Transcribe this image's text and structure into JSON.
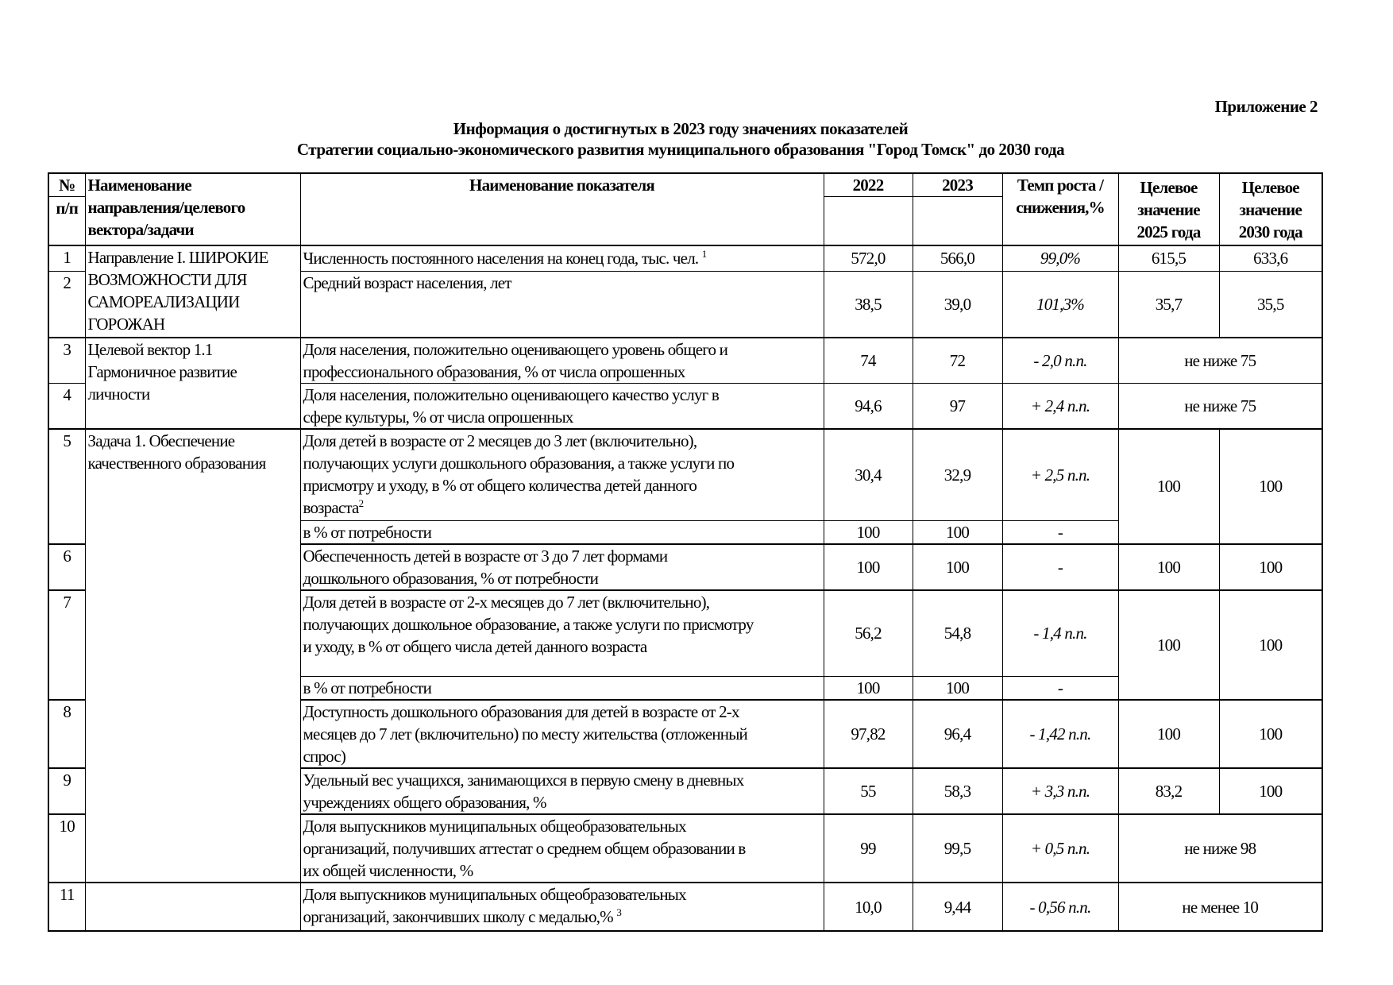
{
  "appendix": "Приложение 2",
  "title_line1": "Информация о достигнутых в 2023 году значениях показателей",
  "title_line2": "Стратегии социально-экономического развития муниципального образования \"Город Томск\" до 2030 года",
  "headers": {
    "num_a": "№",
    "num_b": "п/п",
    "direction": "Наименование\nнаправления/целевого\nвектора/задачи",
    "indicator": "Наименование показателя",
    "y2022": "2022",
    "y2023": "2023",
    "rate": "Темп роста /\nснижения,%",
    "target2025": "Целевое\nзначение\n2025 года",
    "target2030": "Целевое\nзначение\n2030 года"
  },
  "groups": {
    "g1": "Направление I. ШИРОКИЕ\nВОЗМОЖНОСТИ ДЛЯ\nСАМОРЕАЛИЗАЦИИ\nГОРОЖАН",
    "g2": "Целевой вектор 1.1\nГармоничное развитие\nличности",
    "g3": "Задача 1. Обеспечение\nкачественного образования",
    "g4": ""
  },
  "rows": [
    {
      "num": "1",
      "indicator": "Численность постоянного населения на конец года, тыс. чел.",
      "sup": "1",
      "v2022": "572,0",
      "v2023": "566,0",
      "rate": "99,0%",
      "t2025": "615,5",
      "t2030": "633,6"
    },
    {
      "num": "2",
      "indicator": "Средний возраст населения, лет",
      "v2022": "38,5",
      "v2023": "39,0",
      "rate": "101,3%",
      "t2025": "35,7",
      "t2030": "35,5"
    },
    {
      "num": "3",
      "indicator": "Доля населения, положительно оценивающего уровень общего и\nпрофессионального образования, % от числа опрошенных",
      "v2022": "74",
      "v2023": "72",
      "rate": "- 2,0 п.п.",
      "target": "не ниже 75"
    },
    {
      "num": "4",
      "indicator": "Доля населения, положительно оценивающего качество услуг в\nсфере культуры, % от числа опрошенных",
      "v2022": "94,6",
      "v2023": "97",
      "rate": "+ 2,4 п.п.",
      "target": "не ниже 75"
    },
    {
      "num": "5",
      "indicator": "Доля детей в возрасте от 2 месяцев до 3 лет (включительно),\nполучающих услуги дошкольного образования, а также услуги по\nприсмотру и уходу, в  % от общего количества детей данного\nвозраста",
      "sup": "2",
      "v2022": "30,4",
      "v2023": "32,9",
      "rate": "+ 2,5 п.п.",
      "t2025": "100",
      "t2030": "100",
      "sub": {
        "indicator": "в  % от потребности",
        "v2022": "100",
        "v2023": "100",
        "rate": "-"
      }
    },
    {
      "num": "6",
      "indicator": "Обеспеченность детей в возрасте от 3 до 7 лет формами\nдошкольного образования, % от потребности",
      "v2022": "100",
      "v2023": "100",
      "rate": "-",
      "t2025": "100",
      "t2030": "100"
    },
    {
      "num": "7",
      "indicator": "Доля детей в возрасте от 2-х месяцев до 7 лет (включительно),\nполучающих дошкольное образование, а также услуги по присмотру\nи уходу, в % от общего числа детей данного возраста",
      "v2022": "56,2",
      "v2023": "54,8",
      "rate": "- 1,4 п.п.",
      "t2025": "100",
      "t2030": "100",
      "sub": {
        "indicator": "в  % от потребности",
        "v2022": "100",
        "v2023": "100",
        "rate": "-"
      }
    },
    {
      "num": "8",
      "indicator": "Доступность дошкольного образования для детей в возрасте от 2-х\nмесяцев до 7 лет (включительно) по месту жительства (отложенный\nспрос)",
      "v2022": "97,82",
      "v2023": "96,4",
      "rate": "- 1,42 п.п.",
      "t2025": "100",
      "t2030": "100"
    },
    {
      "num": "9",
      "indicator": "Удельный вес учащихся, занимающихся в первую смену в дневных\nучреждениях общего образования, %",
      "v2022": "55",
      "v2023": "58,3",
      "rate": "+ 3,3 п.п.",
      "t2025": "83,2",
      "t2030": "100"
    },
    {
      "num": "10",
      "indicator": "Доля выпускников муниципальных общеобразовательных\nорганизаций, получивших аттестат о среднем общем образовании в\nих общей численности, %",
      "v2022": "99",
      "v2023": "99,5",
      "rate": "+ 0,5 п.п.",
      "target": "не ниже 98"
    },
    {
      "num": "11",
      "indicator": "Доля выпускников муниципальных общеобразовательных\nорганизаций, закончивших школу с медалью,%",
      "sup": "3",
      "v2022": "10,0",
      "v2023": "9,44",
      "rate": "- 0,56 п.п.",
      "target": "не менее 10"
    }
  ]
}
